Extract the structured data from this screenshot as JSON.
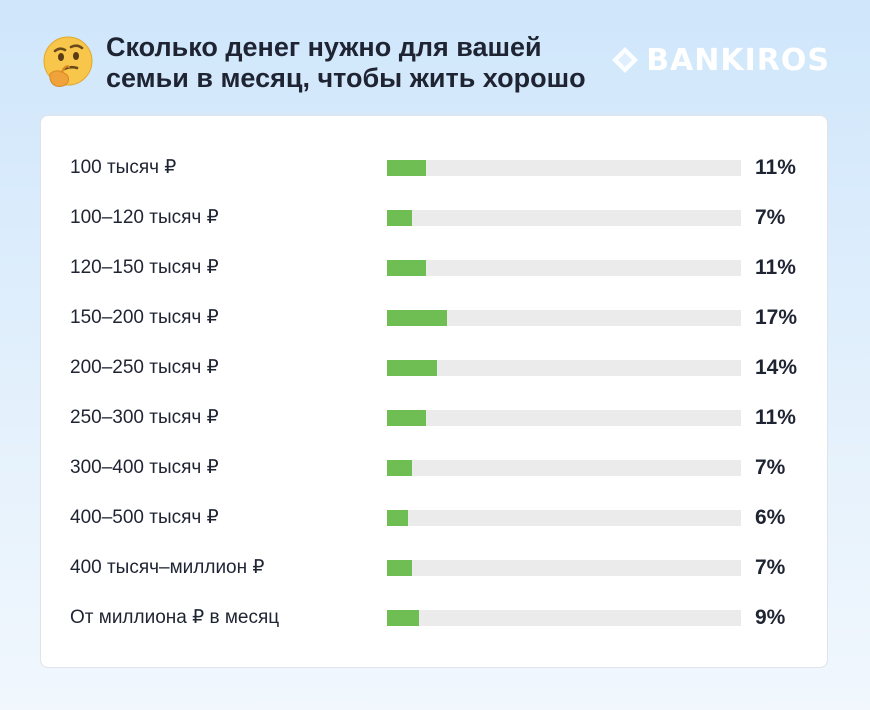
{
  "header": {
    "title_line1": "Сколько денег нужно для вашей",
    "title_line2": "семьи в месяц, чтобы жить хорошо",
    "emoji": "thinking-face-emoji",
    "brand": "BANKIROS"
  },
  "colors": {
    "background_top": "#cfe6fb",
    "bar_fill": "#6fbe53",
    "bar_track": "#ebebeb",
    "text": "#1f2433"
  },
  "chart_data": {
    "type": "bar",
    "orientation": "horizontal",
    "title": "Сколько денег нужно для вашей семьи в месяц, чтобы жить хорошо",
    "xlim": [
      0,
      100
    ],
    "grid": false,
    "categories": [
      "100 тысяч ₽",
      "100–120 тысяч ₽",
      "120–150 тысяч ₽",
      "150–200 тысяч ₽",
      "200–250 тысяч ₽",
      "250–300 тысяч ₽",
      "300–400 тысяч ₽",
      "400–500 тысяч ₽",
      "400 тысяч–миллион ₽",
      "От миллиона ₽ в месяц"
    ],
    "values": [
      11,
      7,
      11,
      17,
      14,
      11,
      7,
      6,
      7,
      9
    ],
    "value_labels": [
      "11%",
      "7%",
      "11%",
      "17%",
      "14%",
      "11%",
      "7%",
      "6%",
      "7%",
      "9%"
    ]
  }
}
